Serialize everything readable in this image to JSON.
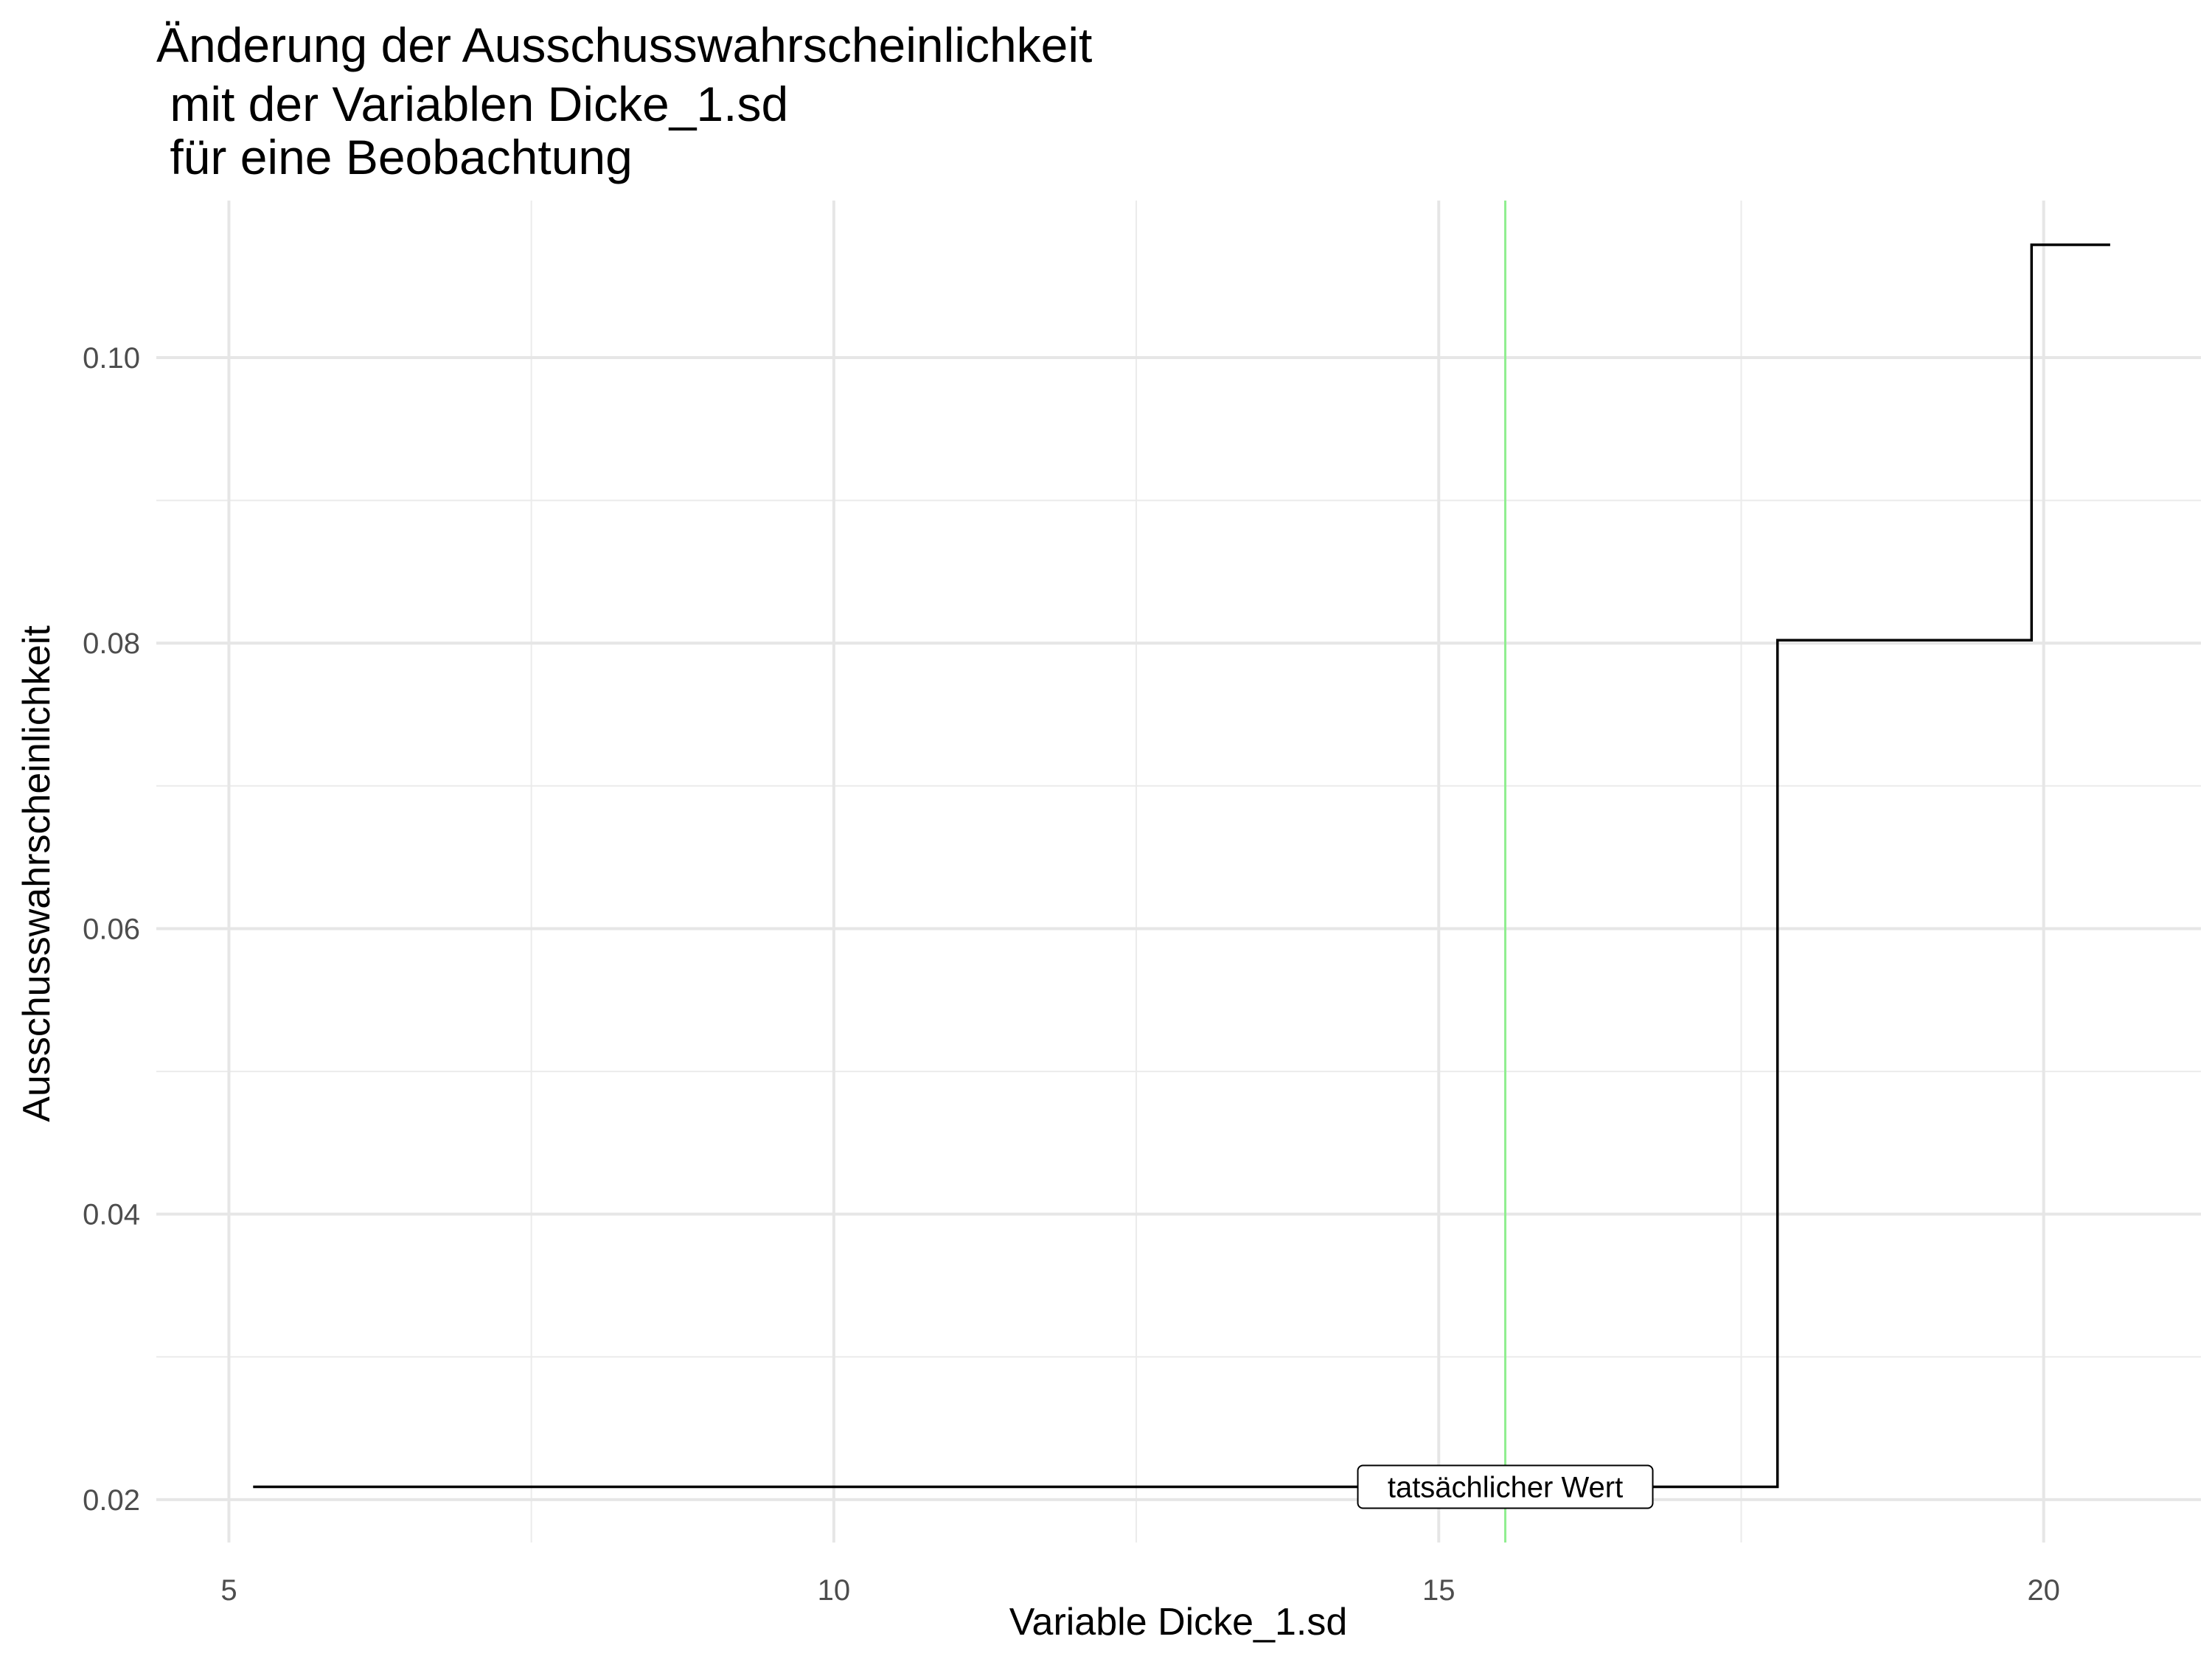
{
  "chart_data": {
    "type": "line",
    "line_shape": "step",
    "title_lines": [
      "Änderung der Ausschusswahrscheinlichkeit",
      " mit der Variablen Dicke_1.sd",
      " für eine Beobachtung"
    ],
    "xlabel": "Variable Dicke_1.sd",
    "ylabel": "Ausschusswahrscheinlichkeit",
    "xlim": [
      4.4,
      21.3
    ],
    "ylim": [
      0.017,
      0.111
    ],
    "x_ticks": [
      5,
      10,
      15,
      20
    ],
    "x_tick_labels": [
      "5",
      "10",
      "15",
      "20"
    ],
    "y_ticks": [
      0.02,
      0.04,
      0.06,
      0.08,
      0.1
    ],
    "y_tick_labels": [
      "0.02",
      "0.04",
      "0.06",
      "0.08",
      "0.10"
    ],
    "grid": true,
    "series": [
      {
        "color": "#000000",
        "x": [
          5.2,
          17.8,
          17.8,
          19.9,
          19.9,
          20.55
        ],
        "y": [
          0.0209,
          0.0209,
          0.0802,
          0.0802,
          0.1079,
          0.1079
        ]
      }
    ],
    "reference_line": {
      "x": 15.55,
      "color": "#90EE90",
      "label": "tatsächlicher Wert",
      "label_y": 0.0209
    }
  }
}
